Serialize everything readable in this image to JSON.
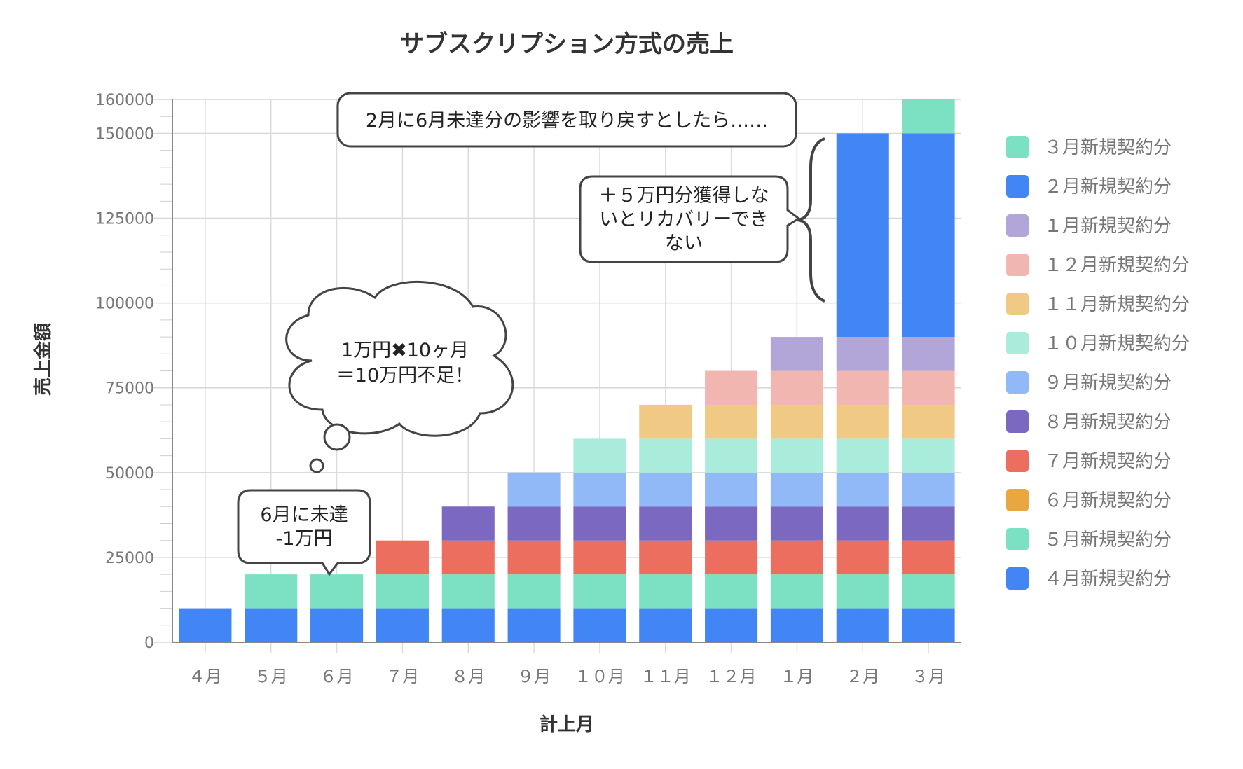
{
  "chart_data": {
    "type": "bar",
    "stacked": true,
    "title": "サブスクリプション方式の売上",
    "xlabel": "計上月",
    "ylabel": "売上金額",
    "ylim": [
      0,
      160000
    ],
    "yticks": [
      0,
      25000,
      50000,
      75000,
      100000,
      125000,
      150000,
      160000
    ],
    "grid": true,
    "legend_position": "right",
    "categories": [
      "４月",
      "５月",
      "６月",
      "７月",
      "８月",
      "９月",
      "１０月",
      "１１月",
      "１２月",
      "１月",
      "２月",
      "３月"
    ],
    "series": [
      {
        "name": "４月新規契約分",
        "color": "#4285f4",
        "values": [
          10000,
          10000,
          10000,
          10000,
          10000,
          10000,
          10000,
          10000,
          10000,
          10000,
          10000,
          10000
        ]
      },
      {
        "name": "５月新規契約分",
        "color": "#7ce0c3",
        "values": [
          0,
          10000,
          10000,
          10000,
          10000,
          10000,
          10000,
          10000,
          10000,
          10000,
          10000,
          10000
        ]
      },
      {
        "name": "６月新規契約分",
        "color": "#eba73f",
        "values": [
          0,
          0,
          0,
          0,
          0,
          0,
          0,
          0,
          0,
          0,
          0,
          0
        ]
      },
      {
        "name": "７月新規契約分",
        "color": "#ec6e5e",
        "values": [
          0,
          0,
          0,
          10000,
          10000,
          10000,
          10000,
          10000,
          10000,
          10000,
          10000,
          10000
        ]
      },
      {
        "name": "８月新規契約分",
        "color": "#7b68c0",
        "values": [
          0,
          0,
          0,
          0,
          10000,
          10000,
          10000,
          10000,
          10000,
          10000,
          10000,
          10000
        ]
      },
      {
        "name": "９月新規契約分",
        "color": "#91b9f7",
        "values": [
          0,
          0,
          0,
          0,
          0,
          10000,
          10000,
          10000,
          10000,
          10000,
          10000,
          10000
        ]
      },
      {
        "name": "１０月新規契約分",
        "color": "#a9ecdb",
        "values": [
          0,
          0,
          0,
          0,
          0,
          0,
          10000,
          10000,
          10000,
          10000,
          10000,
          10000
        ]
      },
      {
        "name": "１１月新規契約分",
        "color": "#f0c985",
        "values": [
          0,
          0,
          0,
          0,
          0,
          0,
          0,
          10000,
          10000,
          10000,
          10000,
          10000
        ]
      },
      {
        "name": "１２月新規契約分",
        "color": "#f2b6b0",
        "values": [
          0,
          0,
          0,
          0,
          0,
          0,
          0,
          0,
          10000,
          10000,
          10000,
          10000
        ]
      },
      {
        "name": "１月新規契約分",
        "color": "#b2a6d9",
        "values": [
          0,
          0,
          0,
          0,
          0,
          0,
          0,
          0,
          0,
          10000,
          10000,
          10000
        ]
      },
      {
        "name": "２月新規契約分",
        "color": "#4285f4",
        "values": [
          0,
          0,
          0,
          0,
          0,
          0,
          0,
          0,
          0,
          0,
          60000,
          60000
        ]
      },
      {
        "name": "３月新規契約分",
        "color": "#7ce0c3",
        "values": [
          0,
          0,
          0,
          0,
          0,
          0,
          0,
          0,
          0,
          0,
          0,
          10000
        ]
      }
    ],
    "legend_order": [
      "３月新規契約分",
      "２月新規契約分",
      "１月新規契約分",
      "１２月新規契約分",
      "１１月新規契約分",
      "１０月新規契約分",
      "９月新規契約分",
      "８月新規契約分",
      "７月新規契約分",
      "６月新規契約分",
      "５月新規契約分",
      "４月新規契約分"
    ],
    "annotations": {
      "june_miss": [
        "6月に未達",
        "-1万円"
      ],
      "shortfall_thought": [
        "1万円✖10ヶ月",
        "＝10万円不足！"
      ],
      "recovery_needed": [
        "＋５万円分獲得しな",
        "いとリカバリーでき",
        "ない"
      ],
      "top_banner": "2月に6月未達分の影響を取り戻すとしたら……"
    }
  }
}
